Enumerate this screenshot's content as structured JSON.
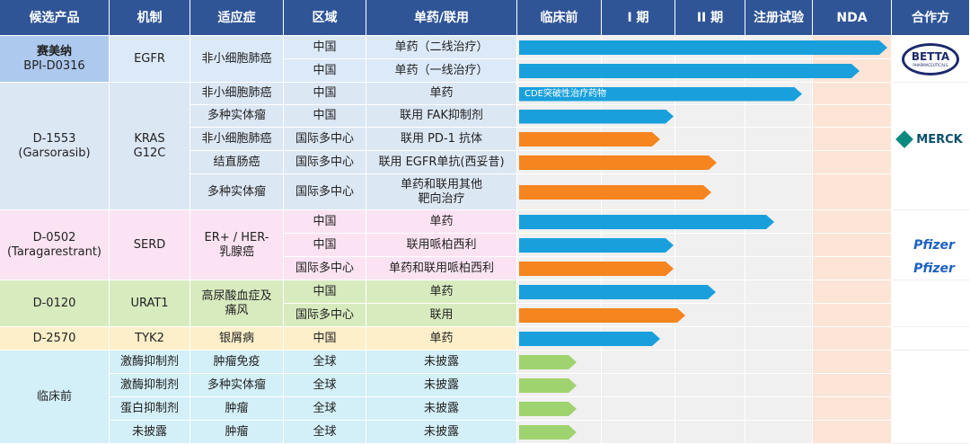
{
  "header": [
    "候选产品",
    "机制",
    "适应症",
    "区域",
    "单药/联用",
    "临床前",
    "I 期",
    "II 期",
    "注册试验",
    "NDA",
    "合作方"
  ],
  "groups": [
    {
      "product": [
        "赛美纳",
        "BPI-D0316"
      ],
      "mechanism": [
        "EGFR"
      ],
      "indication": [
        "非小细胞肺癌"
      ],
      "region": [
        "中国",
        "中国"
      ],
      "regimen": [
        "单药（二线治疗）",
        "单药（一线治疗）"
      ],
      "partner": [
        "BETTA",
        "PHARMACEUTICALS"
      ]
    },
    {
      "product": [
        "D-1553",
        "(Garsorasib)"
      ],
      "mechanism": [
        "KRAS\nG12C"
      ],
      "indication": [
        "非小细胞肺癌",
        "多种实体瘤",
        "非小细胞肺癌",
        "结直肠癌",
        "多种实体瘤"
      ],
      "region": [
        "中国",
        "中国",
        "国际多中心",
        "国际多中心",
        "国际多中心"
      ],
      "regimen": [
        "单药",
        "联用 FAK抑制剂",
        "联用 PD-1 抗体",
        "联用 EGFR单抗(西妥昔)",
        "单药和联用其他\n靶向治疗"
      ],
      "note": "CDE突破性治疗药物",
      "partner": [
        "MERCK"
      ]
    },
    {
      "product": [
        "D-0502",
        "(Taragarestrant)"
      ],
      "mechanism": [
        "SERD"
      ],
      "indication": [
        "ER+ / HER-\n乳腺癌"
      ],
      "region": [
        "中国",
        "中国",
        "国际多中心"
      ],
      "regimen": [
        "单药",
        "联用哌柏西利",
        "单药和联用哌柏西利"
      ],
      "partner": [
        "Pfizer",
        "Pfizer"
      ]
    },
    {
      "product": [
        "D-0120"
      ],
      "mechanism": [
        "URAT1"
      ],
      "indication": [
        "高尿酸血症及\n痛风"
      ],
      "region": [
        "中国",
        "国际多中心"
      ],
      "regimen": [
        "单药",
        "联用"
      ]
    },
    {
      "product": [
        "D-2570"
      ],
      "mechanism": [
        "TYK2"
      ],
      "indication": [
        "银屑病"
      ],
      "region": [
        "中国"
      ],
      "regimen": [
        "单药"
      ]
    },
    {
      "product": [
        "临床前"
      ],
      "mechanism": [
        "激酶抑制剂",
        "激酶抑制剂",
        "蛋白抑制剂",
        "未披露"
      ],
      "indication": [
        "肿瘤免疫",
        "多种实体瘤",
        "肿瘤",
        "肿瘤"
      ],
      "region": [
        "全球",
        "全球",
        "全球",
        "全球"
      ],
      "regimen": [
        "未披露",
        "未披露",
        "未披露",
        "未披露"
      ]
    }
  ]
}
